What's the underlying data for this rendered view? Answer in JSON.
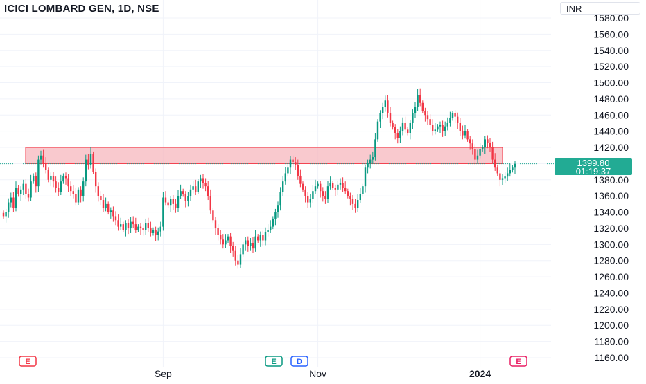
{
  "header": {
    "title": "ICICI LOMBARD GEN, 1D, NSE",
    "currency": "INR"
  },
  "price_label": {
    "price": "1399.80",
    "countdown": "01:19:37"
  },
  "events": [
    {
      "label": "E",
      "color": "#f23645"
    },
    {
      "label": "E",
      "color": "#089981"
    },
    {
      "label": "D",
      "color": "#2962ff"
    },
    {
      "label": "E",
      "color": "#e91e63"
    }
  ],
  "colors": {
    "up": "#089981",
    "down": "#f23645",
    "zone_fill": "#f7b7bd",
    "zone_border": "#f23645",
    "last_price_line": "#22ab94"
  },
  "chart_data": {
    "type": "candlestick",
    "title": "ICICI LOMBARD GEN, 1D, NSE",
    "currency": "INR",
    "y_axis": {
      "ylim": [
        1155,
        1590
      ],
      "ticks": [
        1580,
        1560,
        1540,
        1520,
        1500,
        1480,
        1460,
        1440,
        1420,
        1400,
        1380,
        1360,
        1340,
        1320,
        1300,
        1280,
        1260,
        1240,
        1220,
        1200,
        1180,
        1160
      ],
      "tick_labels": [
        "1580.00",
        "1560.00",
        "1540.00",
        "1520.00",
        "1500.00",
        "1480.00",
        "1460.00",
        "1440.00",
        "1420.00",
        "1400.00",
        "1380.00",
        "1360.00",
        "1340.00",
        "1320.00",
        "1300.00",
        "1280.00",
        "1260.00",
        "1240.00",
        "1220.00",
        "1200.00",
        "1180.00",
        "1160.00"
      ]
    },
    "x_axis": {
      "tick_labels": [
        {
          "label": "Sep",
          "bar_index": 64,
          "bold": false
        },
        {
          "label": "Nov",
          "bar_index": 126,
          "bold": false
        },
        {
          "label": "2024",
          "bar_index": 191,
          "bold": true
        }
      ]
    },
    "grid": true,
    "resistance_zone": {
      "low": 1400,
      "high": 1420
    },
    "last_price": 1399.8,
    "closes": [
      1335,
      1340,
      1352,
      1358,
      1345,
      1370,
      1362,
      1368,
      1375,
      1362,
      1358,
      1378,
      1385,
      1372,
      1405,
      1410,
      1400,
      1392,
      1380,
      1385,
      1378,
      1370,
      1365,
      1378,
      1385,
      1382,
      1372,
      1366,
      1362,
      1352,
      1368,
      1360,
      1378,
      1405,
      1398,
      1412,
      1390,
      1372,
      1360,
      1355,
      1345,
      1350,
      1340,
      1342,
      1335,
      1330,
      1322,
      1325,
      1318,
      1326,
      1320,
      1328,
      1325,
      1318,
      1322,
      1320,
      1318,
      1326,
      1320,
      1314,
      1318,
      1312,
      1316,
      1322,
      1358,
      1352,
      1348,
      1356,
      1350,
      1345,
      1360,
      1366,
      1362,
      1354,
      1360,
      1368,
      1372,
      1365,
      1378,
      1382,
      1376,
      1372,
      1360,
      1342,
      1330,
      1320,
      1312,
      1306,
      1300,
      1305,
      1310,
      1298,
      1292,
      1280,
      1275,
      1288,
      1300,
      1305,
      1298,
      1302,
      1295,
      1310,
      1305,
      1312,
      1305,
      1315,
      1318,
      1322,
      1332,
      1340,
      1348,
      1365,
      1378,
      1388,
      1395,
      1405,
      1402,
      1398,
      1385,
      1375,
      1368,
      1360,
      1352,
      1356,
      1366,
      1372,
      1375,
      1366,
      1360,
      1356,
      1372,
      1376,
      1370,
      1368,
      1374,
      1376,
      1370,
      1366,
      1360,
      1356,
      1350,
      1345,
      1355,
      1362,
      1372,
      1395,
      1400,
      1405,
      1408,
      1430,
      1452,
      1462,
      1470,
      1478,
      1462,
      1450,
      1445,
      1438,
      1432,
      1440,
      1450,
      1442,
      1438,
      1450,
      1462,
      1470,
      1485,
      1475,
      1465,
      1460,
      1455,
      1448,
      1440,
      1442,
      1446,
      1448,
      1440,
      1446,
      1450,
      1456,
      1462,
      1458,
      1450,
      1440,
      1435,
      1440,
      1430,
      1425,
      1418,
      1405,
      1410,
      1418,
      1420,
      1430,
      1426,
      1420,
      1405,
      1395,
      1388,
      1380,
      1382,
      1384,
      1388,
      1392,
      1395,
      1399.8
    ]
  }
}
